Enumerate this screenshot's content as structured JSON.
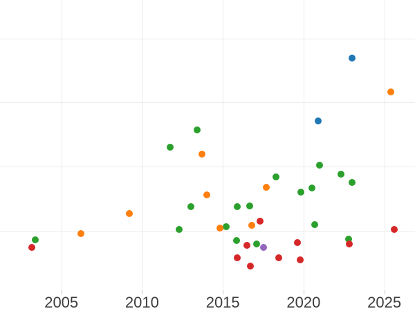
{
  "figure": {
    "background": "#ffffff",
    "grid_color": "#ebebeb",
    "tick_color": "#c9c9c9",
    "tick_label_color": "#3d3d3d"
  },
  "chart_data": {
    "type": "scatter",
    "title": "",
    "xlabel": "",
    "ylabel": "",
    "x_ticks": [
      2005,
      2010,
      2015,
      2020,
      2025
    ],
    "x_tick_labels": [
      "2005",
      "2010",
      "2015",
      "2020",
      "2025"
    ],
    "xlim": [
      2001.2,
      2026.9
    ],
    "ylim": [
      0.07,
      4.6
    ],
    "y_gridlines": [
      1,
      2,
      3,
      4
    ],
    "y_unit": "gridline spacing (y axis labels not visible in image)",
    "grid": true,
    "legend": "none",
    "marker_diameter_px": 10,
    "series": [
      {
        "name": "green",
        "color": "#2ca02c",
        "points": [
          [
            2003.4,
            0.86
          ],
          [
            2011.75,
            2.3
          ],
          [
            2012.3,
            1.02
          ],
          [
            2013.0,
            1.38
          ],
          [
            2013.4,
            2.57
          ],
          [
            2015.2,
            1.06
          ],
          [
            2015.85,
            0.85
          ],
          [
            2015.9,
            1.38
          ],
          [
            2016.65,
            1.39
          ],
          [
            2017.1,
            0.79
          ],
          [
            2018.3,
            1.84
          ],
          [
            2019.85,
            1.6
          ],
          [
            2020.5,
            1.67
          ],
          [
            2020.7,
            1.1
          ],
          [
            2021.0,
            2.02
          ],
          [
            2022.3,
            1.88
          ],
          [
            2022.8,
            0.87
          ],
          [
            2023.0,
            1.75
          ]
        ]
      },
      {
        "name": "orange",
        "color": "#ff7f0e",
        "points": [
          [
            2006.2,
            0.96
          ],
          [
            2009.2,
            1.27
          ],
          [
            2013.7,
            2.19
          ],
          [
            2014.0,
            1.56
          ],
          [
            2014.8,
            1.04
          ],
          [
            2016.8,
            1.08
          ],
          [
            2017.7,
            1.68
          ],
          [
            2025.4,
            3.17
          ]
        ]
      },
      {
        "name": "red",
        "color": "#d62728",
        "points": [
          [
            2003.15,
            0.74
          ],
          [
            2015.9,
            0.58
          ],
          [
            2016.5,
            0.77
          ],
          [
            2016.7,
            0.45
          ],
          [
            2017.3,
            1.15
          ],
          [
            2018.45,
            0.58
          ],
          [
            2019.6,
            0.81
          ],
          [
            2019.8,
            0.55
          ],
          [
            2022.85,
            0.79
          ],
          [
            2025.6,
            1.02
          ]
        ]
      },
      {
        "name": "blue",
        "color": "#1f77b4",
        "points": [
          [
            2020.9,
            2.71
          ],
          [
            2023.0,
            3.69
          ]
        ]
      },
      {
        "name": "purple",
        "color": "#9467bd",
        "points": [
          [
            2017.5,
            0.74
          ]
        ]
      }
    ]
  }
}
